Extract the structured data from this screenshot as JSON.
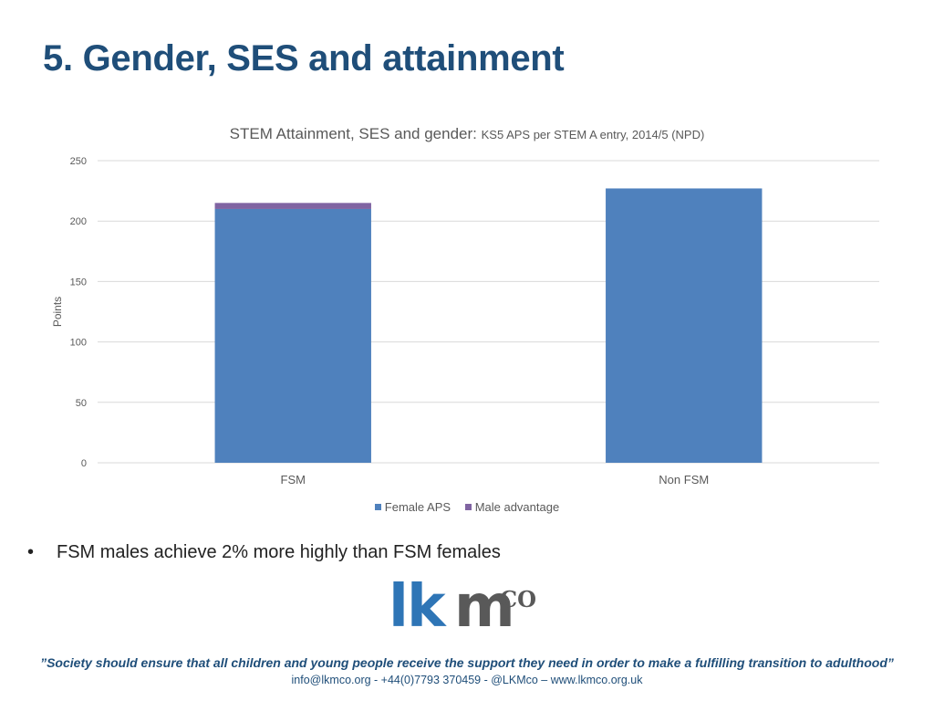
{
  "slide": {
    "title": "5. Gender, SES and attainment",
    "bullet": "FSM males achieve 2% more highly than FSM females"
  },
  "chart_data": {
    "type": "bar",
    "stacked": true,
    "title": "STEM Attainment, SES and gender:",
    "subtitle": "KS5 APS per STEM A entry, 2014/5 (NPD)",
    "xlabel": "",
    "ylabel": "Points",
    "categories": [
      "FSM",
      "Non FSM"
    ],
    "series": [
      {
        "name": "Female APS",
        "values": [
          210,
          227
        ],
        "color": "#4f81bd"
      },
      {
        "name": "Male advantage",
        "values": [
          5,
          0
        ],
        "color": "#8064a2"
      }
    ],
    "ylim": [
      0,
      250
    ],
    "yticks": [
      0,
      50,
      100,
      150,
      200,
      250
    ],
    "grid": true,
    "legend_position": "bottom"
  },
  "footer": {
    "logo_lk": "lk",
    "logo_m": "m",
    "logo_co": "CO",
    "quote": "”Society should ensure that all children and young people receive the support they need in order to make a fulfilling transition to adulthood”",
    "contact": "info@lkmco.org - +44(0)7793 370459 - @LKMco – www.lkmco.org.uk"
  }
}
